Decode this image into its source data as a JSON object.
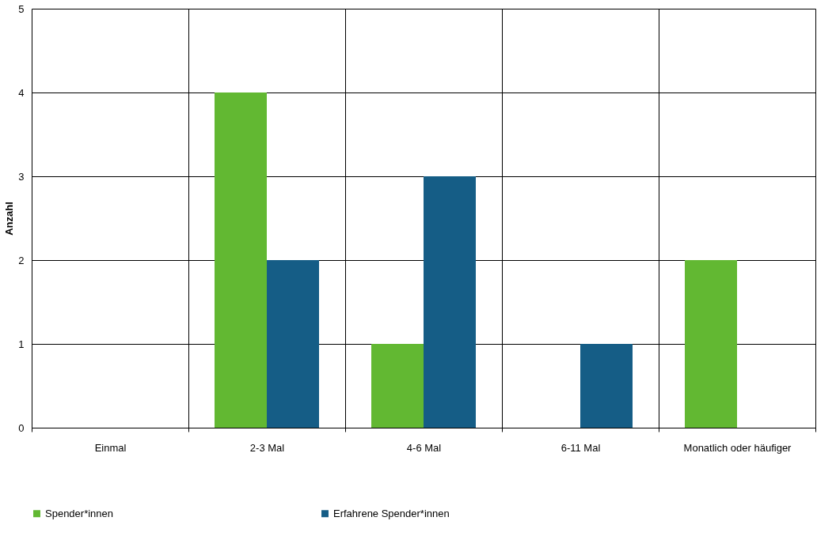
{
  "chart_data": {
    "type": "bar",
    "ylabel": "Anzahl",
    "categories": [
      "Einmal",
      "2-3 Mal",
      "4-6 Mal",
      "6-11 Mal",
      "Monatlich oder häufiger"
    ],
    "series": [
      {
        "name": "Spender*innen",
        "color": "#62b832",
        "values": [
          0,
          4,
          1,
          0,
          2
        ]
      },
      {
        "name": "Erfahrene Spender*innen",
        "color": "#155d86",
        "values": [
          0,
          2,
          3,
          1,
          0
        ]
      }
    ],
    "ylim": [
      0,
      5
    ],
    "yticks": [
      0,
      1,
      2,
      3,
      4,
      5
    ],
    "grid": true,
    "legend": "bottom"
  }
}
